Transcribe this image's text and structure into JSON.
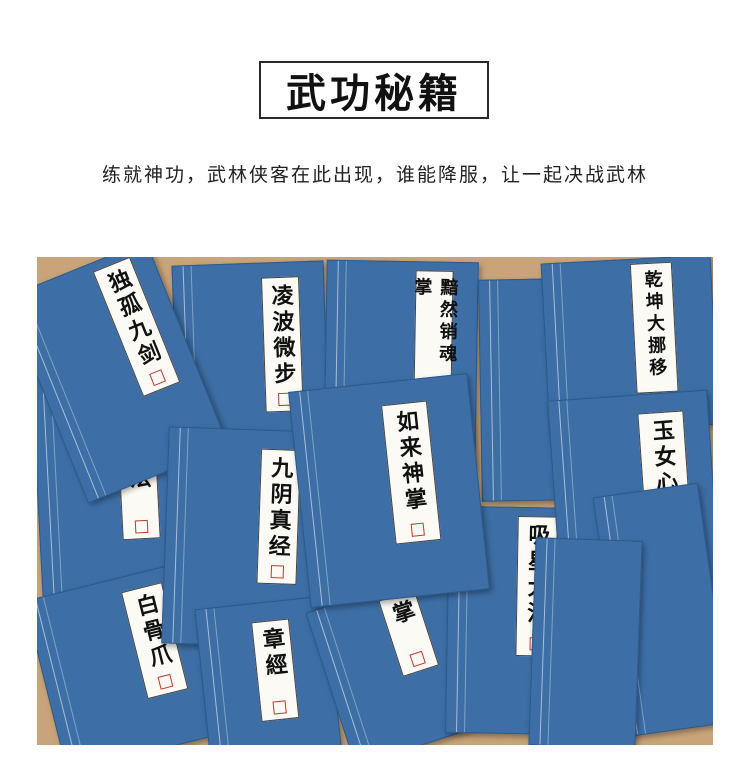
{
  "title": "武功秘籍",
  "subtitle": "练就神功，武林侠客在此出现，谁能降服，让一起决战武林",
  "books": [
    {
      "id": "b1",
      "title": "独孤九剑"
    },
    {
      "id": "b2",
      "title": "凌波微步"
    },
    {
      "id": "b3",
      "title": "黯然销魂掌"
    },
    {
      "id": "b4",
      "title": "乾坤大挪移"
    },
    {
      "id": "b5",
      "title": "法"
    },
    {
      "id": "b6",
      "title": "九阴真经"
    },
    {
      "id": "b7",
      "title": "如来神掌"
    },
    {
      "id": "b8",
      "title": "玉女心"
    },
    {
      "id": "b9",
      "title": "吸星大法"
    },
    {
      "id": "b10",
      "title": "白骨爪"
    },
    {
      "id": "b11",
      "title": "章經"
    },
    {
      "id": "b12",
      "title": "掌"
    }
  ]
}
